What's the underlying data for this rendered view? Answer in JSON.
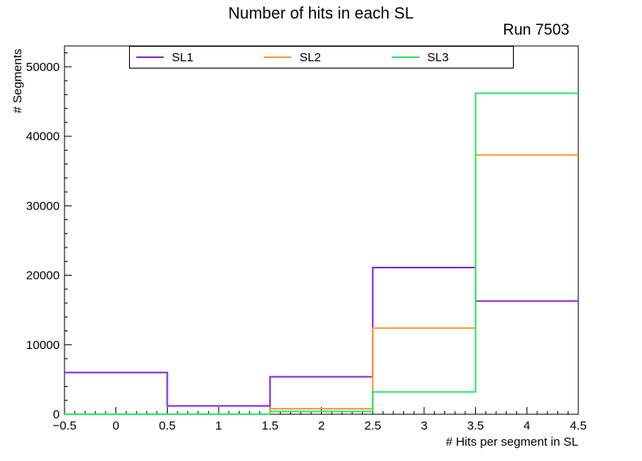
{
  "chart_data": {
    "type": "step-histogram",
    "title": "Number of hits in each SL",
    "annotation": "Run 7503",
    "xlabel": "# Hits per segment in SL",
    "ylabel": "# Segments",
    "xlim": [
      -0.5,
      4.5
    ],
    "ylim": [
      0,
      53000
    ],
    "bin_edges": [
      -0.5,
      0.5,
      1.5,
      2.5,
      3.5,
      4.5
    ],
    "bin_centers": [
      0,
      1,
      2,
      3,
      4
    ],
    "x_major_ticks": [
      -0.5,
      0,
      0.5,
      1,
      1.5,
      2,
      2.5,
      3,
      3.5,
      4,
      4.5
    ],
    "x_minor_step": 0.1,
    "y_major_ticks": [
      0,
      10000,
      20000,
      30000,
      40000,
      50000
    ],
    "y_minor_step": 2000,
    "grid": false,
    "legend_position": "top-inside",
    "background": "#ffffff",
    "frame_color": "#000000",
    "series": [
      {
        "name": "SL1",
        "color": "#8a2be2",
        "values": [
          6000,
          1200,
          5400,
          21100,
          16300
        ]
      },
      {
        "name": "SL2",
        "color": "#ff9933",
        "values": [
          0,
          0,
          800,
          12400,
          37300
        ]
      },
      {
        "name": "SL3",
        "color": "#2ee86b",
        "values": [
          0,
          0,
          400,
          3200,
          46200
        ]
      }
    ]
  }
}
